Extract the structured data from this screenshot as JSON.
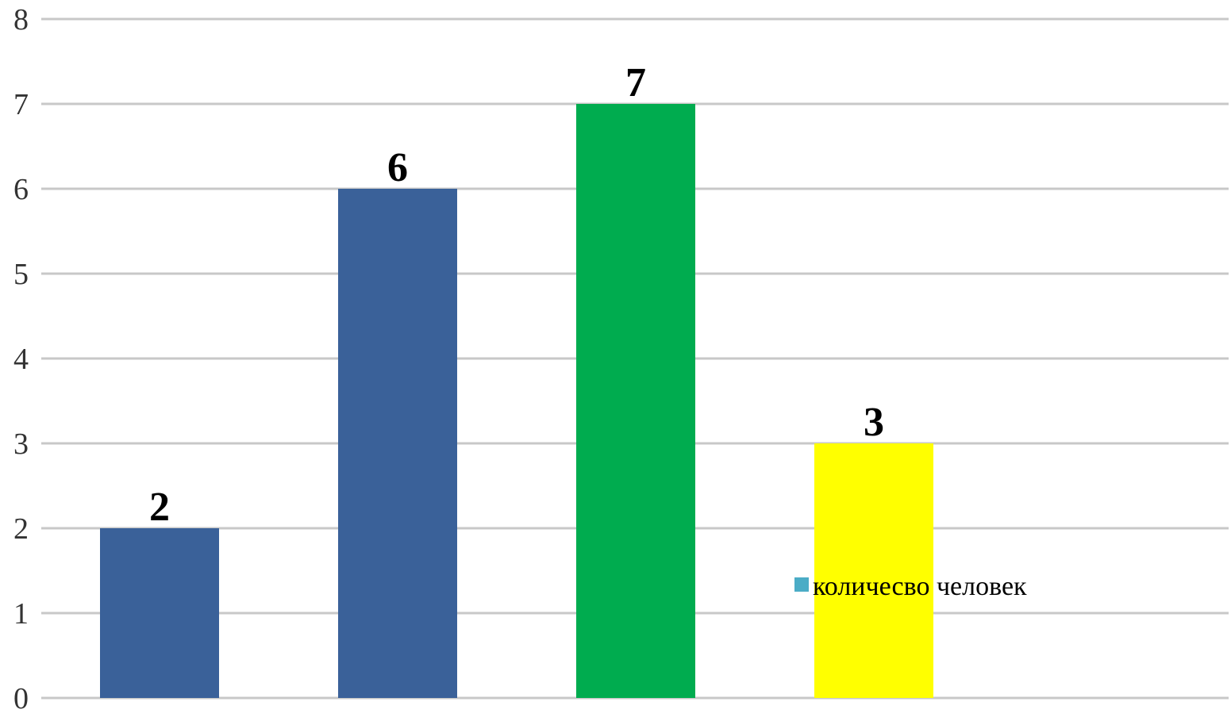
{
  "chart_data": {
    "type": "bar",
    "categories": [
      "",
      "",
      "",
      ""
    ],
    "series": [
      {
        "name": "количесво человек",
        "values": [
          2,
          6,
          7,
          3
        ]
      }
    ],
    "bar_colors": [
      "#3A6199",
      "#3A6199",
      "#00AC4F",
      "#FFFF00"
    ],
    "data_labels": [
      "2",
      "6",
      "7",
      "3"
    ],
    "ylim": [
      0,
      8
    ],
    "y_ticks": [
      0,
      1,
      2,
      3,
      4,
      5,
      6,
      7,
      8
    ],
    "y_tick_labels": [
      "0",
      "1",
      "2",
      "3",
      "4",
      "5",
      "6",
      "7",
      "8"
    ],
    "grid": true,
    "grid_color": "#c8c8c8",
    "legend": {
      "label": "количесво человек",
      "marker_color": "#4BACC6",
      "placement": "right"
    }
  }
}
